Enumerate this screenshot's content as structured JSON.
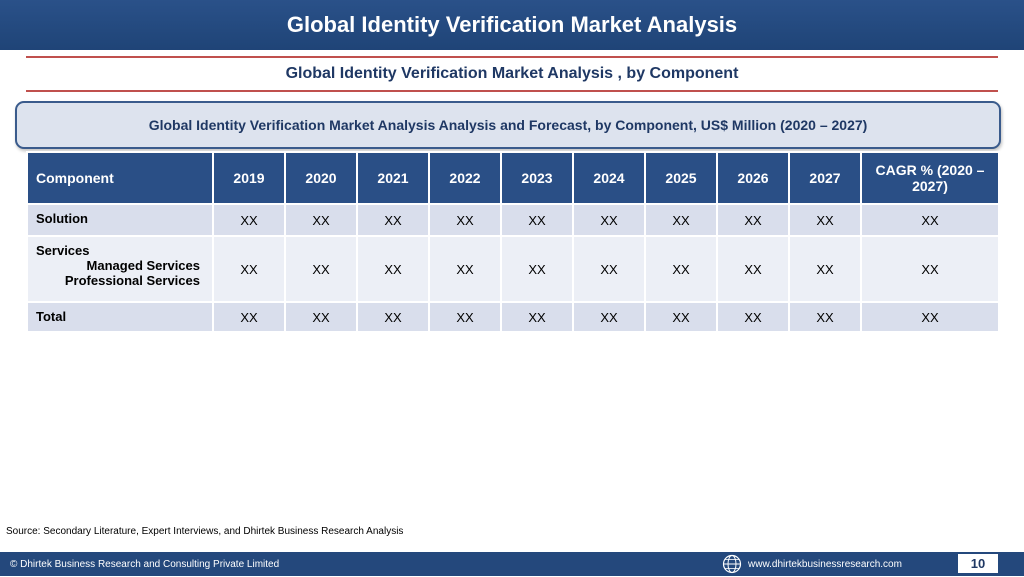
{
  "header": {
    "title": "Global Identity Verification Market Analysis"
  },
  "subtitle": "Global Identity Verification Market Analysis , by Component",
  "caption": "Global Identity Verification Market Analysis  Analysis and Forecast, by Component, US$ Million (2020 – 2027)",
  "table": {
    "columns": [
      "Component",
      "2019",
      "2020",
      "2021",
      "2022",
      "2023",
      "2024",
      "2025",
      "2026",
      "2027",
      "CAGR % (2020 – 2027)"
    ],
    "rows": [
      {
        "label": "Solution",
        "values": [
          "XX",
          "XX",
          "XX",
          "XX",
          "XX",
          "XX",
          "XX",
          "XX",
          "XX",
          "XX"
        ]
      },
      {
        "label": "Services",
        "sub": [
          "Managed Services",
          "Professional Services"
        ],
        "values": [
          "XX",
          "XX",
          "XX",
          "XX",
          "XX",
          "XX",
          "XX",
          "XX",
          "XX",
          "XX"
        ]
      },
      {
        "label": "Total",
        "values": [
          "XX",
          "XX",
          "XX",
          "XX",
          "XX",
          "XX",
          "XX",
          "XX",
          "XX",
          "XX"
        ]
      }
    ]
  },
  "source": "Source: Secondary Literature, Expert Interviews, and Dhirtek Business Research Analysis",
  "footer": {
    "copyright": "© Dhirtek Business Research and Consulting Private Limited",
    "website": "www.dhirtekbusinessresearch.com",
    "page_number": "10",
    "icon": "globe-icon"
  },
  "colors": {
    "header_bg": "#2a5189",
    "rule": "#c0504d",
    "table_header": "#2a4f86",
    "row_bg": "#d9deec",
    "row_alt": "#eceff6"
  }
}
